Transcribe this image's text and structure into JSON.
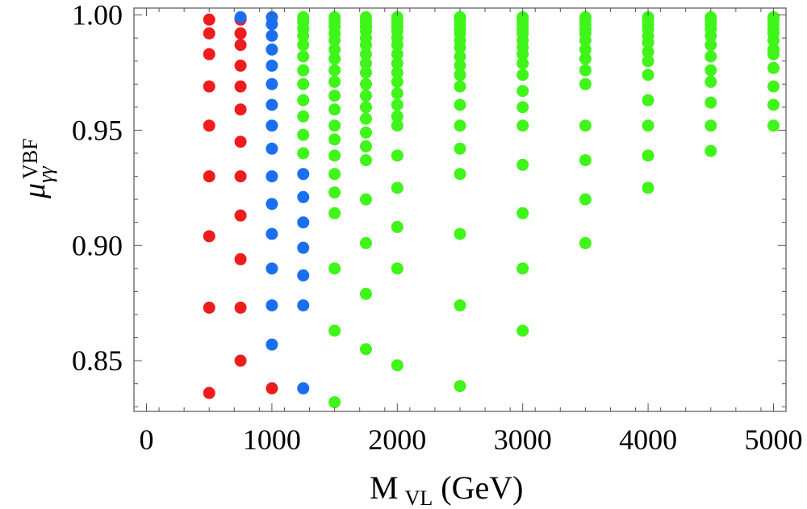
{
  "chart_data": {
    "type": "scatter",
    "xlabel": {
      "main": "M",
      "sub": "VL",
      "unit": "(GeV)"
    },
    "ylabel": {
      "main": "μ",
      "sub": "γγ",
      "sup": "VBF"
    },
    "xlim": [
      -100,
      5100
    ],
    "ylim": [
      0.828,
      1.003
    ],
    "x_ticks": [
      {
        "value": 0,
        "label": "0"
      },
      {
        "value": 1000,
        "label": "1000"
      },
      {
        "value": 2000,
        "label": "2000"
      },
      {
        "value": 3000,
        "label": "3000"
      },
      {
        "value": 4000,
        "label": "4000"
      },
      {
        "value": 5000,
        "label": "5000"
      }
    ],
    "y_ticks": [
      {
        "value": 0.85,
        "label": "0.85"
      },
      {
        "value": 0.9,
        "label": "0.90"
      },
      {
        "value": 0.95,
        "label": "0.95"
      },
      {
        "value": 1.0,
        "label": "1.00"
      }
    ],
    "grid": false,
    "series": [
      {
        "name": "red",
        "color": "#ee1c1c",
        "points": [
          [
            500,
            0.998
          ],
          [
            500,
            0.992
          ],
          [
            500,
            0.983
          ],
          [
            500,
            0.969
          ],
          [
            500,
            0.952
          ],
          [
            500,
            0.93
          ],
          [
            500,
            0.904
          ],
          [
            500,
            0.873
          ],
          [
            500,
            0.836
          ],
          [
            750,
            0.998
          ],
          [
            750,
            0.992
          ],
          [
            750,
            0.987
          ],
          [
            750,
            0.978
          ],
          [
            750,
            0.969
          ],
          [
            750,
            0.959
          ],
          [
            750,
            0.945
          ],
          [
            750,
            0.93
          ],
          [
            750,
            0.913
          ],
          [
            750,
            0.894
          ],
          [
            750,
            0.873
          ],
          [
            750,
            0.85
          ],
          [
            1000,
            0.838
          ]
        ]
      },
      {
        "name": "blue",
        "color": "#1a6ff0",
        "points": [
          [
            750,
            0.999
          ],
          [
            1000,
            0.999
          ],
          [
            1000,
            0.996
          ],
          [
            1000,
            0.991
          ],
          [
            1000,
            0.985
          ],
          [
            1000,
            0.978
          ],
          [
            1000,
            0.97
          ],
          [
            1000,
            0.961
          ],
          [
            1000,
            0.952
          ],
          [
            1000,
            0.942
          ],
          [
            1000,
            0.93
          ],
          [
            1000,
            0.918
          ],
          [
            1000,
            0.905
          ],
          [
            1000,
            0.89
          ],
          [
            1000,
            0.874
          ],
          [
            1000,
            0.857
          ],
          [
            1250,
            0.931
          ],
          [
            1250,
            0.921
          ],
          [
            1250,
            0.91
          ],
          [
            1250,
            0.899
          ],
          [
            1250,
            0.887
          ],
          [
            1250,
            0.874
          ],
          [
            1250,
            0.838
          ]
        ]
      },
      {
        "name": "green",
        "color": "#3ff519",
        "points": [
          [
            1250,
            0.999
          ],
          [
            1250,
            0.997
          ],
          [
            1250,
            0.994
          ],
          [
            1250,
            0.991
          ],
          [
            1250,
            0.987
          ],
          [
            1250,
            0.982
          ],
          [
            1250,
            0.976
          ],
          [
            1250,
            0.97
          ],
          [
            1250,
            0.963
          ],
          [
            1250,
            0.956
          ],
          [
            1250,
            0.948
          ],
          [
            1250,
            0.94
          ],
          [
            1500,
            0.999
          ],
          [
            1500,
            0.997
          ],
          [
            1500,
            0.995
          ],
          [
            1500,
            0.992
          ],
          [
            1500,
            0.989
          ],
          [
            1500,
            0.985
          ],
          [
            1500,
            0.981
          ],
          [
            1500,
            0.976
          ],
          [
            1500,
            0.971
          ],
          [
            1500,
            0.965
          ],
          [
            1500,
            0.959
          ],
          [
            1500,
            0.952
          ],
          [
            1500,
            0.946
          ],
          [
            1500,
            0.939
          ],
          [
            1500,
            0.931
          ],
          [
            1500,
            0.923
          ],
          [
            1500,
            0.914
          ],
          [
            1500,
            0.89
          ],
          [
            1500,
            0.863
          ],
          [
            1500,
            0.832
          ],
          [
            1750,
            0.999
          ],
          [
            1750,
            0.997
          ],
          [
            1750,
            0.995
          ],
          [
            1750,
            0.993
          ],
          [
            1750,
            0.99
          ],
          [
            1750,
            0.987
          ],
          [
            1750,
            0.983
          ],
          [
            1750,
            0.979
          ],
          [
            1750,
            0.975
          ],
          [
            1750,
            0.97
          ],
          [
            1750,
            0.965
          ],
          [
            1750,
            0.96
          ],
          [
            1750,
            0.955
          ],
          [
            1750,
            0.949
          ],
          [
            1750,
            0.943
          ],
          [
            1750,
            0.937
          ],
          [
            1750,
            0.92
          ],
          [
            1750,
            0.901
          ],
          [
            1750,
            0.879
          ],
          [
            1750,
            0.855
          ],
          [
            2000,
            0.999
          ],
          [
            2000,
            0.997
          ],
          [
            2000,
            0.995
          ],
          [
            2000,
            0.993
          ],
          [
            2000,
            0.99
          ],
          [
            2000,
            0.987
          ],
          [
            2000,
            0.983
          ],
          [
            2000,
            0.979
          ],
          [
            2000,
            0.975
          ],
          [
            2000,
            0.971
          ],
          [
            2000,
            0.966
          ],
          [
            2000,
            0.961
          ],
          [
            2000,
            0.956
          ],
          [
            2000,
            0.952
          ],
          [
            2000,
            0.939
          ],
          [
            2000,
            0.925
          ],
          [
            2000,
            0.908
          ],
          [
            2000,
            0.89
          ],
          [
            2000,
            0.848
          ],
          [
            2500,
            0.999
          ],
          [
            2500,
            0.998
          ],
          [
            2500,
            0.996
          ],
          [
            2500,
            0.994
          ],
          [
            2500,
            0.992
          ],
          [
            2500,
            0.989
          ],
          [
            2500,
            0.986
          ],
          [
            2500,
            0.982
          ],
          [
            2500,
            0.978
          ],
          [
            2500,
            0.974
          ],
          [
            2500,
            0.969
          ],
          [
            2500,
            0.961
          ],
          [
            2500,
            0.952
          ],
          [
            2500,
            0.942
          ],
          [
            2500,
            0.931
          ],
          [
            2500,
            0.905
          ],
          [
            2500,
            0.874
          ],
          [
            2500,
            0.839
          ],
          [
            3000,
            0.999
          ],
          [
            3000,
            0.998
          ],
          [
            3000,
            0.996
          ],
          [
            3000,
            0.994
          ],
          [
            3000,
            0.992
          ],
          [
            3000,
            0.989
          ],
          [
            3000,
            0.986
          ],
          [
            3000,
            0.983
          ],
          [
            3000,
            0.979
          ],
          [
            3000,
            0.974
          ],
          [
            3000,
            0.967
          ],
          [
            3000,
            0.96
          ],
          [
            3000,
            0.952
          ],
          [
            3000,
            0.935
          ],
          [
            3000,
            0.914
          ],
          [
            3000,
            0.89
          ],
          [
            3000,
            0.863
          ],
          [
            3500,
            0.999
          ],
          [
            3500,
            0.998
          ],
          [
            3500,
            0.996
          ],
          [
            3500,
            0.994
          ],
          [
            3500,
            0.992
          ],
          [
            3500,
            0.989
          ],
          [
            3500,
            0.985
          ],
          [
            3500,
            0.981
          ],
          [
            3500,
            0.976
          ],
          [
            3500,
            0.97
          ],
          [
            3500,
            0.952
          ],
          [
            3500,
            0.937
          ],
          [
            3500,
            0.92
          ],
          [
            3500,
            0.901
          ],
          [
            4000,
            0.999
          ],
          [
            4000,
            0.998
          ],
          [
            4000,
            0.996
          ],
          [
            4000,
            0.994
          ],
          [
            4000,
            0.991
          ],
          [
            4000,
            0.988
          ],
          [
            4000,
            0.984
          ],
          [
            4000,
            0.98
          ],
          [
            4000,
            0.974
          ],
          [
            4000,
            0.963
          ],
          [
            4000,
            0.952
          ],
          [
            4000,
            0.939
          ],
          [
            4000,
            0.925
          ],
          [
            4500,
            0.999
          ],
          [
            4500,
            0.998
          ],
          [
            4500,
            0.996
          ],
          [
            4500,
            0.994
          ],
          [
            4500,
            0.991
          ],
          [
            4500,
            0.987
          ],
          [
            4500,
            0.982
          ],
          [
            4500,
            0.976
          ],
          [
            4500,
            0.971
          ],
          [
            4500,
            0.962
          ],
          [
            4500,
            0.952
          ],
          [
            4500,
            0.941
          ],
          [
            5000,
            0.999
          ],
          [
            5000,
            0.998
          ],
          [
            5000,
            0.996
          ],
          [
            5000,
            0.994
          ],
          [
            5000,
            0.992
          ],
          [
            5000,
            0.989
          ],
          [
            5000,
            0.985
          ],
          [
            5000,
            0.983
          ],
          [
            5000,
            0.977
          ],
          [
            5000,
            0.969
          ],
          [
            5000,
            0.961
          ],
          [
            5000,
            0.952
          ]
        ]
      }
    ]
  }
}
